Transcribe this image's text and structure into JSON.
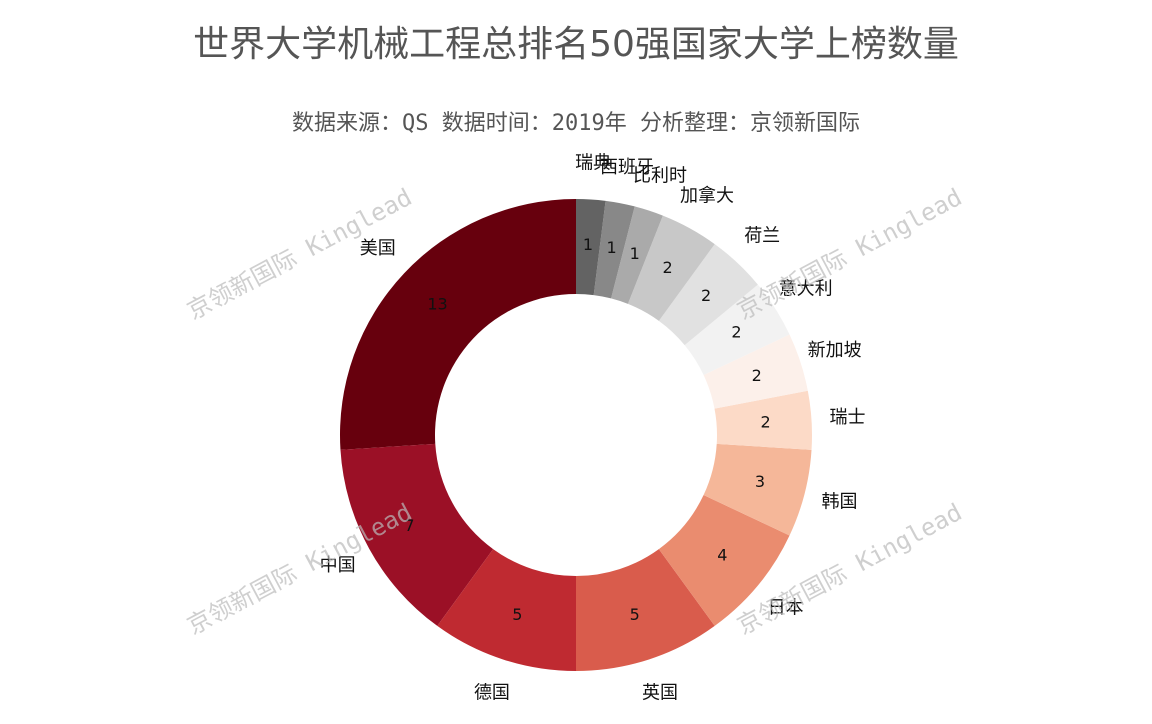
{
  "chart_data": {
    "type": "donut",
    "title": "世界大学机械工程总排名50强国家大学上榜数量",
    "subtitle": "数据来源：QS 数据时间：2019年 分析整理：京领新国际",
    "watermark": "京领新国际 Kinglead",
    "categories": [
      "美国",
      "中国",
      "德国",
      "英国",
      "日本",
      "韩国",
      "瑞士",
      "新加坡",
      "意大利",
      "荷兰",
      "加拿大",
      "比利时",
      "西班牙",
      "瑞典"
    ],
    "values": [
      13,
      7,
      5,
      5,
      4,
      3,
      2,
      2,
      2,
      2,
      2,
      1,
      1,
      1
    ],
    "colors": [
      "#67000d",
      "#9b1026",
      "#bf2a31",
      "#d95c4c",
      "#ea8c6f",
      "#f5b799",
      "#fcdac7",
      "#fcf0ea",
      "#f2f2f2",
      "#e1e1e1",
      "#c8c8c8",
      "#aaaaaa",
      "#888888",
      "#636363"
    ]
  }
}
